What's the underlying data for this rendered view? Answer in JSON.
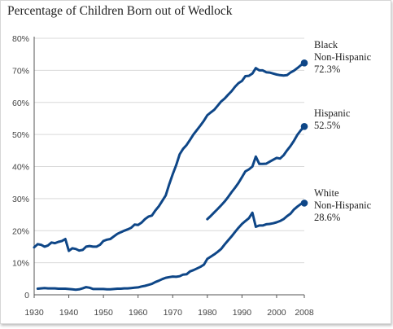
{
  "chart_data": {
    "type": "line",
    "title": "Percentage of Children Born out of Wedlock",
    "xlabel": "",
    "ylabel": "",
    "xlim": [
      1930,
      2008
    ],
    "ylim": [
      0,
      80
    ],
    "x_ticks": [
      "1930",
      "1940",
      "1950",
      "1960",
      "1970",
      "1980",
      "1990",
      "2000",
      "2008"
    ],
    "y_ticks": [
      "0",
      "10%",
      "20%",
      "30%",
      "40%",
      "50%",
      "60%",
      "70%",
      "80%"
    ],
    "grid": "horizontal",
    "colors": {
      "line": "#0e4687",
      "grid": "#d9d9d9",
      "axis": "#555555"
    },
    "series": [
      {
        "label_lines": [
          "Black",
          "Non-Hispanic",
          "72.3%"
        ],
        "end_value": 72.3,
        "points": [
          [
            1930,
            14.8
          ],
          [
            1931,
            15.8
          ],
          [
            1932,
            15.6
          ],
          [
            1933,
            15.0
          ],
          [
            1934,
            15.4
          ],
          [
            1935,
            16.3
          ],
          [
            1936,
            16.1
          ],
          [
            1937,
            16.5
          ],
          [
            1938,
            16.8
          ],
          [
            1939,
            17.4
          ],
          [
            1940,
            13.7
          ],
          [
            1941,
            14.5
          ],
          [
            1942,
            14.3
          ],
          [
            1943,
            13.8
          ],
          [
            1944,
            14.0
          ],
          [
            1945,
            15.0
          ],
          [
            1946,
            15.2
          ],
          [
            1947,
            15.0
          ],
          [
            1948,
            15.0
          ],
          [
            1949,
            15.6
          ],
          [
            1950,
            16.8
          ],
          [
            1951,
            17.2
          ],
          [
            1952,
            17.4
          ],
          [
            1953,
            18.2
          ],
          [
            1954,
            19.0
          ],
          [
            1955,
            19.5
          ],
          [
            1956,
            20.0
          ],
          [
            1957,
            20.4
          ],
          [
            1958,
            20.9
          ],
          [
            1959,
            21.9
          ],
          [
            1960,
            21.8
          ],
          [
            1961,
            22.5
          ],
          [
            1962,
            23.6
          ],
          [
            1963,
            24.4
          ],
          [
            1964,
            24.7
          ],
          [
            1965,
            26.3
          ],
          [
            1966,
            27.6
          ],
          [
            1967,
            29.3
          ],
          [
            1968,
            31.0
          ],
          [
            1969,
            34.5
          ],
          [
            1970,
            37.6
          ],
          [
            1971,
            40.4
          ],
          [
            1972,
            43.8
          ],
          [
            1973,
            45.5
          ],
          [
            1974,
            46.7
          ],
          [
            1975,
            48.3
          ],
          [
            1976,
            50.0
          ],
          [
            1977,
            51.4
          ],
          [
            1978,
            52.8
          ],
          [
            1979,
            54.3
          ],
          [
            1980,
            56.0
          ],
          [
            1981,
            56.9
          ],
          [
            1982,
            57.7
          ],
          [
            1983,
            59.0
          ],
          [
            1984,
            60.3
          ],
          [
            1985,
            61.2
          ],
          [
            1986,
            62.4
          ],
          [
            1987,
            63.5
          ],
          [
            1988,
            64.9
          ],
          [
            1989,
            66.0
          ],
          [
            1990,
            66.7
          ],
          [
            1991,
            68.2
          ],
          [
            1992,
            68.3
          ],
          [
            1993,
            69.0
          ],
          [
            1994,
            70.7
          ],
          [
            1995,
            70.0
          ],
          [
            1996,
            70.0
          ],
          [
            1997,
            69.4
          ],
          [
            1998,
            69.3
          ],
          [
            1999,
            69.0
          ],
          [
            2000,
            68.7
          ],
          [
            2001,
            68.5
          ],
          [
            2002,
            68.4
          ],
          [
            2003,
            68.5
          ],
          [
            2004,
            69.3
          ],
          [
            2005,
            69.9
          ],
          [
            2006,
            70.7
          ],
          [
            2007,
            71.6
          ],
          [
            2008,
            72.3
          ]
        ]
      },
      {
        "label_lines": [
          "Hispanic",
          "52.5%"
        ],
        "end_value": 52.5,
        "points": [
          [
            1980,
            23.6
          ],
          [
            1981,
            24.6
          ],
          [
            1982,
            25.7
          ],
          [
            1983,
            26.8
          ],
          [
            1984,
            27.9
          ],
          [
            1985,
            29.1
          ],
          [
            1986,
            30.5
          ],
          [
            1987,
            32.0
          ],
          [
            1988,
            33.4
          ],
          [
            1989,
            34.9
          ],
          [
            1990,
            36.7
          ],
          [
            1991,
            38.5
          ],
          [
            1992,
            39.1
          ],
          [
            1993,
            40.0
          ],
          [
            1994,
            43.1
          ],
          [
            1995,
            40.8
          ],
          [
            1996,
            40.8
          ],
          [
            1997,
            40.9
          ],
          [
            1998,
            41.5
          ],
          [
            1999,
            42.1
          ],
          [
            2000,
            42.7
          ],
          [
            2001,
            42.5
          ],
          [
            2002,
            43.5
          ],
          [
            2003,
            45.0
          ],
          [
            2004,
            46.4
          ],
          [
            2005,
            48.0
          ],
          [
            2006,
            49.9
          ],
          [
            2007,
            51.3
          ],
          [
            2008,
            52.5
          ]
        ]
      },
      {
        "label_lines": [
          "White",
          "Non-Hispanic",
          "28.6%"
        ],
        "end_value": 28.6,
        "points": [
          [
            1931,
            1.9
          ],
          [
            1932,
            2.0
          ],
          [
            1933,
            2.1
          ],
          [
            1934,
            2.0
          ],
          [
            1935,
            2.0
          ],
          [
            1936,
            2.0
          ],
          [
            1937,
            1.9
          ],
          [
            1938,
            1.9
          ],
          [
            1939,
            1.9
          ],
          [
            1940,
            1.8
          ],
          [
            1941,
            1.7
          ],
          [
            1942,
            1.6
          ],
          [
            1943,
            1.7
          ],
          [
            1944,
            2.0
          ],
          [
            1945,
            2.4
          ],
          [
            1946,
            2.2
          ],
          [
            1947,
            1.8
          ],
          [
            1948,
            1.8
          ],
          [
            1949,
            1.8
          ],
          [
            1950,
            1.8
          ],
          [
            1951,
            1.7
          ],
          [
            1952,
            1.7
          ],
          [
            1953,
            1.8
          ],
          [
            1954,
            1.9
          ],
          [
            1955,
            1.9
          ],
          [
            1956,
            2.0
          ],
          [
            1957,
            2.0
          ],
          [
            1958,
            2.1
          ],
          [
            1959,
            2.2
          ],
          [
            1960,
            2.3
          ],
          [
            1961,
            2.6
          ],
          [
            1962,
            2.8
          ],
          [
            1963,
            3.1
          ],
          [
            1964,
            3.4
          ],
          [
            1965,
            4.0
          ],
          [
            1966,
            4.4
          ],
          [
            1967,
            4.9
          ],
          [
            1968,
            5.3
          ],
          [
            1969,
            5.5
          ],
          [
            1970,
            5.7
          ],
          [
            1971,
            5.6
          ],
          [
            1972,
            5.8
          ],
          [
            1973,
            6.3
          ],
          [
            1974,
            6.4
          ],
          [
            1975,
            7.3
          ],
          [
            1976,
            7.7
          ],
          [
            1977,
            8.2
          ],
          [
            1978,
            8.7
          ],
          [
            1979,
            9.4
          ],
          [
            1980,
            11.2
          ],
          [
            1981,
            11.9
          ],
          [
            1982,
            12.6
          ],
          [
            1983,
            13.4
          ],
          [
            1984,
            14.3
          ],
          [
            1985,
            15.7
          ],
          [
            1986,
            17.0
          ],
          [
            1987,
            18.2
          ],
          [
            1988,
            19.6
          ],
          [
            1989,
            20.9
          ],
          [
            1990,
            22.1
          ],
          [
            1991,
            23.0
          ],
          [
            1992,
            23.9
          ],
          [
            1993,
            25.6
          ],
          [
            1994,
            21.2
          ],
          [
            1995,
            21.6
          ],
          [
            1996,
            21.6
          ],
          [
            1997,
            22.0
          ],
          [
            1998,
            22.1
          ],
          [
            1999,
            22.3
          ],
          [
            2000,
            22.6
          ],
          [
            2001,
            23.0
          ],
          [
            2002,
            23.6
          ],
          [
            2003,
            24.5
          ],
          [
            2004,
            25.3
          ],
          [
            2005,
            26.6
          ],
          [
            2006,
            27.5
          ],
          [
            2007,
            28.3
          ],
          [
            2008,
            28.6
          ]
        ]
      }
    ]
  }
}
